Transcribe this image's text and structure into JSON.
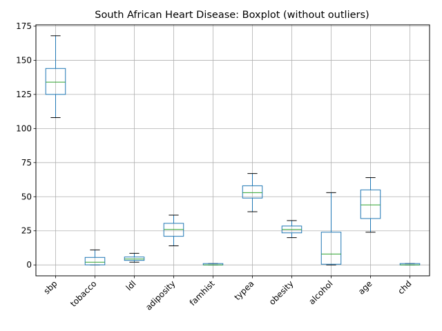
{
  "chart_data": {
    "type": "boxplot",
    "title": "South African Heart Disease: Boxplot (without outliers)",
    "xlabel": "",
    "ylabel": "",
    "ylim": [
      -8,
      176
    ],
    "yticks": [
      0,
      25,
      50,
      75,
      100,
      125,
      150,
      175
    ],
    "grid": true,
    "showfliers": false,
    "box_color": "#1f77b4",
    "median_color": "#2ca02c",
    "whisker_color": "#1f77b4",
    "cap_color": "#000000",
    "grid_color": "#b0b0b0",
    "categories": [
      "sbp",
      "tobacco",
      "ldl",
      "adiposity",
      "famhist",
      "typea",
      "obesity",
      "alcohol",
      "age",
      "chd"
    ],
    "boxes": [
      {
        "label": "sbp",
        "whislo": 108,
        "q1": 125,
        "median": 134,
        "q3": 144,
        "whishi": 168
      },
      {
        "label": "tobacco",
        "whislo": 0,
        "q1": 0.05,
        "median": 2,
        "q3": 5.5,
        "whishi": 11
      },
      {
        "label": "ldl",
        "whislo": 2,
        "q1": 3.3,
        "median": 4.3,
        "q3": 5.8,
        "whishi": 8.5
      },
      {
        "label": "adiposity",
        "whislo": 14,
        "q1": 21,
        "median": 26,
        "q3": 30.5,
        "whishi": 36.5
      },
      {
        "label": "famhist",
        "whislo": 0,
        "q1": 0,
        "median": 0,
        "q3": 1,
        "whishi": 1
      },
      {
        "label": "typea",
        "whislo": 39,
        "q1": 49,
        "median": 53,
        "q3": 58,
        "whishi": 67
      },
      {
        "label": "obesity",
        "whislo": 20,
        "q1": 23.5,
        "median": 26,
        "q3": 28.5,
        "whishi": 32.5
      },
      {
        "label": "alcohol",
        "whislo": 0,
        "q1": 0.5,
        "median": 8,
        "q3": 24,
        "whishi": 53
      },
      {
        "label": "age",
        "whislo": 24,
        "q1": 34,
        "median": 44,
        "q3": 55,
        "whishi": 64
      },
      {
        "label": "chd",
        "whislo": 0,
        "q1": 0,
        "median": 0,
        "q3": 1,
        "whishi": 1
      }
    ]
  }
}
